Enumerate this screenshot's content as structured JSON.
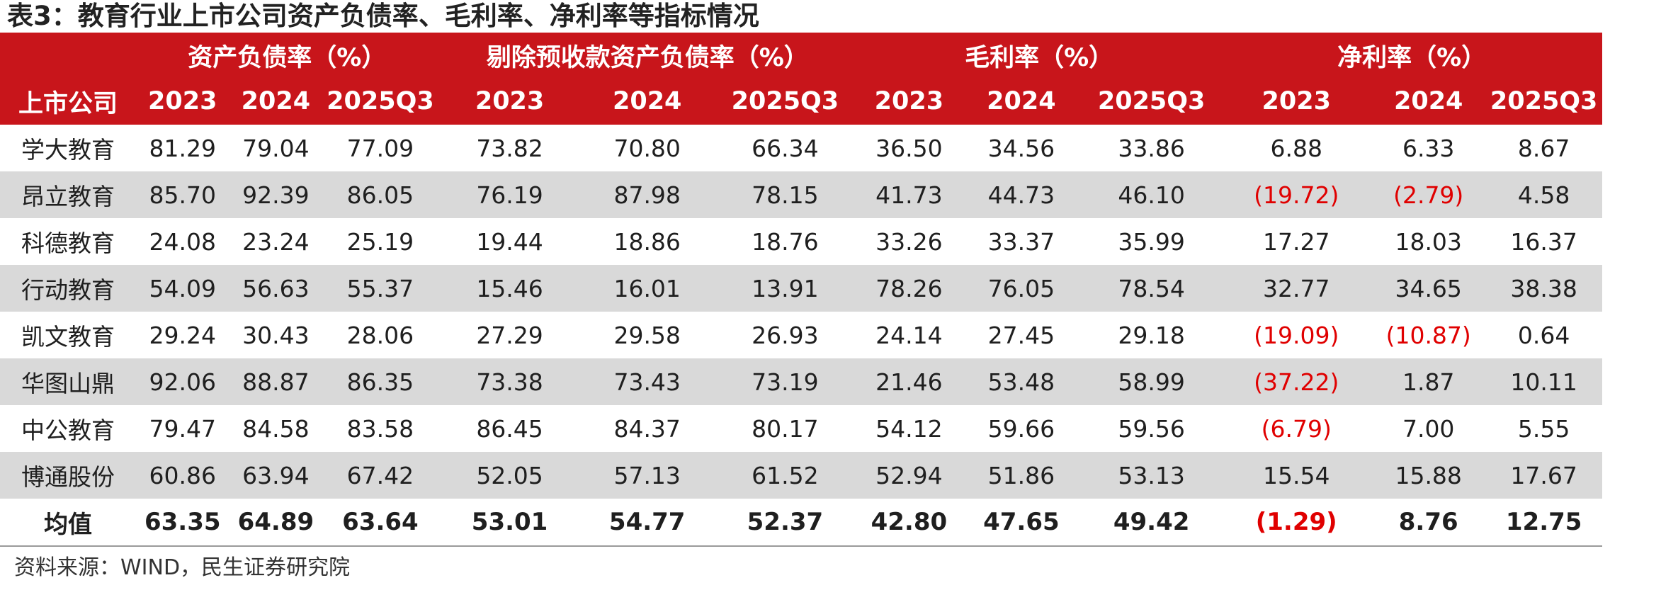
{
  "title": "表3：教育行业上市公司资产负债率、毛利率、净利率等指标情况",
  "header": {
    "company_col": "上市公司",
    "groups": [
      "资产负债率（%）",
      "剔除预收款资产负债率（%）",
      "毛利率（%）",
      "净利率（%）"
    ],
    "years": [
      "2023",
      "2024",
      "2025Q3"
    ]
  },
  "rows": [
    {
      "company": "学大教育",
      "values": [
        "81.29",
        "79.04",
        "77.09",
        "73.82",
        "70.80",
        "66.34",
        "36.50",
        "34.56",
        "33.86",
        "6.88",
        "6.33",
        "8.67"
      ]
    },
    {
      "company": "昂立教育",
      "values": [
        "85.70",
        "92.39",
        "86.05",
        "76.19",
        "87.98",
        "78.15",
        "41.73",
        "44.73",
        "46.10",
        "(19.72)",
        "(2.79)",
        "4.58"
      ]
    },
    {
      "company": "科德教育",
      "values": [
        "24.08",
        "23.24",
        "25.19",
        "19.44",
        "18.86",
        "18.76",
        "33.26",
        "33.37",
        "35.99",
        "17.27",
        "18.03",
        "16.37"
      ]
    },
    {
      "company": "行动教育",
      "values": [
        "54.09",
        "56.63",
        "55.37",
        "15.46",
        "16.01",
        "13.91",
        "78.26",
        "76.05",
        "78.54",
        "32.77",
        "34.65",
        "38.38"
      ]
    },
    {
      "company": "凯文教育",
      "values": [
        "29.24",
        "30.43",
        "28.06",
        "27.29",
        "29.58",
        "26.93",
        "24.14",
        "27.45",
        "29.18",
        "(19.09)",
        "(10.87)",
        "0.64"
      ]
    },
    {
      "company": "华图山鼎",
      "values": [
        "92.06",
        "88.87",
        "86.35",
        "73.38",
        "73.43",
        "73.19",
        "21.46",
        "53.48",
        "58.99",
        "(37.22)",
        "1.87",
        "10.11"
      ]
    },
    {
      "company": "中公教育",
      "values": [
        "79.47",
        "84.58",
        "83.58",
        "86.45",
        "84.37",
        "80.17",
        "54.12",
        "59.66",
        "59.56",
        "(6.79)",
        "7.00",
        "5.55"
      ]
    },
    {
      "company": "博通股份",
      "values": [
        "60.86",
        "63.94",
        "67.42",
        "52.05",
        "57.13",
        "61.52",
        "52.94",
        "51.86",
        "53.13",
        "15.54",
        "15.88",
        "17.67"
      ]
    }
  ],
  "average": {
    "company": "均值",
    "values": [
      "63.35",
      "64.89",
      "63.64",
      "53.01",
      "54.77",
      "52.37",
      "42.80",
      "47.65",
      "49.42",
      "(1.29)",
      "8.76",
      "12.75"
    ]
  },
  "source": "资料来源：WIND，民生证券研究院",
  "colors": {
    "header_bg": "#c8151b",
    "stripe_bg": "#d9d9d9",
    "negative": "#e00000"
  }
}
